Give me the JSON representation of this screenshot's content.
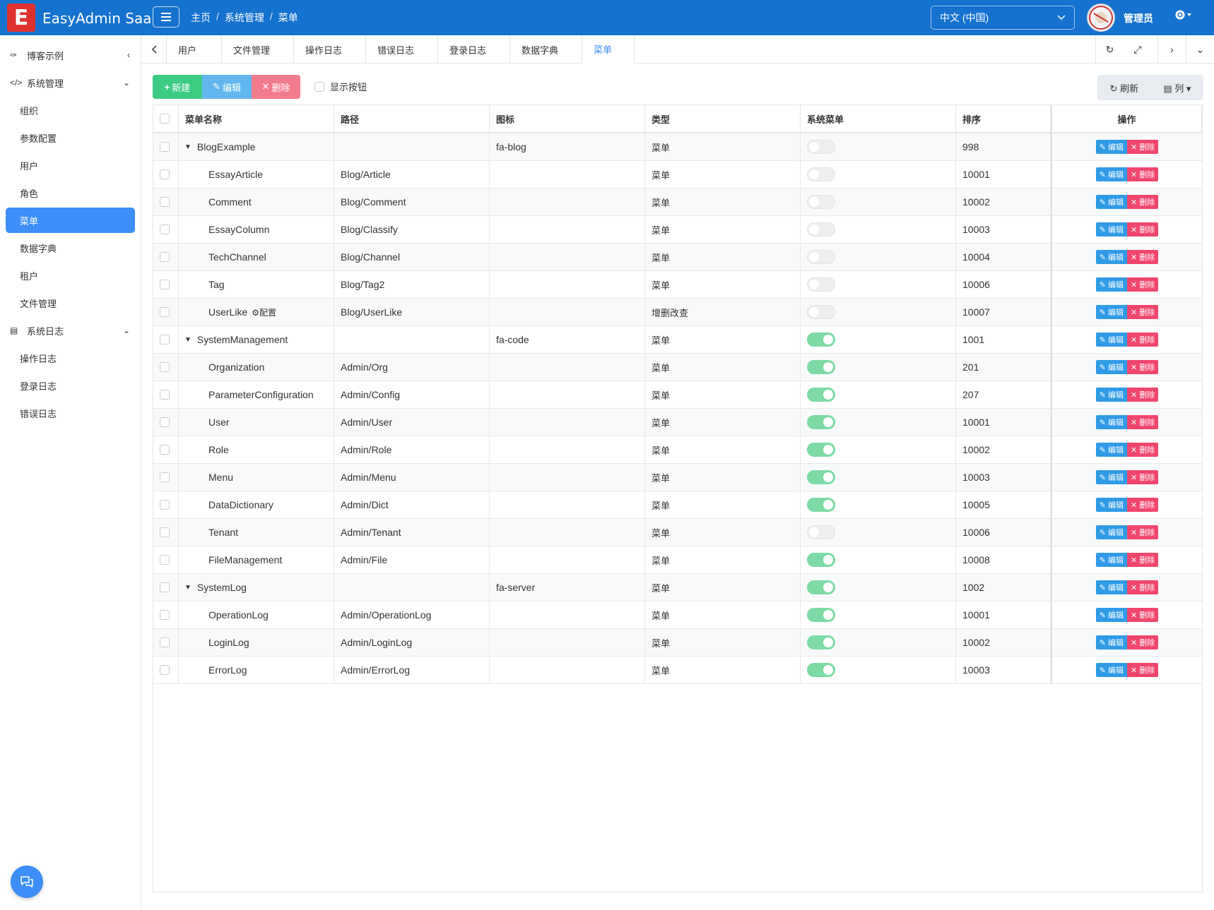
{
  "header": {
    "logo_letter": "E",
    "app_title": "EasyAdmin Saa",
    "breadcrumb": [
      "主页",
      "系统管理",
      "菜单"
    ],
    "breadcrumb_sep": "/",
    "language": "中文 (中国)",
    "user": "管理员"
  },
  "sidebar": {
    "groups": [
      {
        "label": "博客示例",
        "icon": "blog-icon"
      },
      {
        "label": "系统管理",
        "icon": "code-icon"
      },
      {
        "label": "系统日志",
        "icon": "server-icon"
      }
    ],
    "items": [
      "组织",
      "参数配置",
      "用户",
      "角色",
      "菜单",
      "数据字典",
      "租户",
      "文件管理"
    ],
    "log_items": [
      "操作日志",
      "登录日志",
      "错误日志"
    ]
  },
  "tabs": [
    "用户",
    "文件管理",
    "操作日志",
    "错误日志",
    "登录日志",
    "数据字典",
    "菜单"
  ],
  "toolbar": {
    "new": "新建",
    "edit": "编辑",
    "delete": "删除",
    "show_buttons": "显示按钮",
    "refresh": "刷新",
    "columns": "列"
  },
  "table": {
    "headers": [
      "菜单名称",
      "路径",
      "图标",
      "类型",
      "系统菜单",
      "排序",
      "操作"
    ],
    "edit_label": "编辑",
    "delete_label": "删除",
    "rows": [
      {
        "name": "BlogExample",
        "path": "",
        "icon": "fa-blog",
        "type": "菜单",
        "system": false,
        "sort": "998",
        "parent": true
      },
      {
        "name": "EssayArticle",
        "path": "Blog/Article",
        "icon": "",
        "type": "菜单",
        "system": false,
        "sort": "10001"
      },
      {
        "name": "Comment",
        "path": "Blog/Comment",
        "icon": "",
        "type": "菜单",
        "system": false,
        "sort": "10002"
      },
      {
        "name": "EssayColumn",
        "path": "Blog/Classify",
        "icon": "",
        "type": "菜单",
        "system": false,
        "sort": "10003"
      },
      {
        "name": "TechChannel",
        "path": "Blog/Channel",
        "icon": "",
        "type": "菜单",
        "system": false,
        "sort": "10004"
      },
      {
        "name": "Tag",
        "path": "Blog/Tag2",
        "icon": "",
        "type": "菜单",
        "system": false,
        "sort": "10006"
      },
      {
        "name": "UserLike",
        "badge": "配置",
        "path": "Blog/UserLike",
        "icon": "",
        "type": "增删改查",
        "system": false,
        "sort": "10007"
      },
      {
        "name": "SystemManagement",
        "path": "",
        "icon": "fa-code",
        "type": "菜单",
        "system": true,
        "sort": "1001",
        "parent": true
      },
      {
        "name": "Organization",
        "path": "Admin/Org",
        "icon": "",
        "type": "菜单",
        "system": true,
        "sort": "201"
      },
      {
        "name": "ParameterConfiguration",
        "path": "Admin/Config",
        "icon": "",
        "type": "菜单",
        "system": true,
        "sort": "207"
      },
      {
        "name": "User",
        "path": "Admin/User",
        "icon": "",
        "type": "菜单",
        "system": true,
        "sort": "10001"
      },
      {
        "name": "Role",
        "path": "Admin/Role",
        "icon": "",
        "type": "菜单",
        "system": true,
        "sort": "10002"
      },
      {
        "name": "Menu",
        "path": "Admin/Menu",
        "icon": "",
        "type": "菜单",
        "system": true,
        "sort": "10003"
      },
      {
        "name": "DataDictionary",
        "path": "Admin/Dict",
        "icon": "",
        "type": "菜单",
        "system": true,
        "sort": "10005"
      },
      {
        "name": "Tenant",
        "path": "Admin/Tenant",
        "icon": "",
        "type": "菜单",
        "system": false,
        "sort": "10006"
      },
      {
        "name": "FileManagement",
        "path": "Admin/File",
        "icon": "",
        "type": "菜单",
        "system": true,
        "sort": "10008"
      },
      {
        "name": "SystemLog",
        "path": "",
        "icon": "fa-server",
        "type": "菜单",
        "system": true,
        "sort": "1002",
        "parent": true
      },
      {
        "name": "OperationLog",
        "path": "Admin/OperationLog",
        "icon": "",
        "type": "菜单",
        "system": true,
        "sort": "10001"
      },
      {
        "name": "LoginLog",
        "path": "Admin/LoginLog",
        "icon": "",
        "type": "菜单",
        "system": true,
        "sort": "10002"
      },
      {
        "name": "ErrorLog",
        "path": "Admin/ErrorLog",
        "icon": "",
        "type": "菜单",
        "system": true,
        "sort": "10003"
      }
    ]
  },
  "colors": {
    "header": "#1572ce",
    "active": "#3d8ef8",
    "new": "#3ecb84",
    "edit": "#62b7ef",
    "delete": "#f37b8e",
    "toggle_on": "#7ddaa6"
  }
}
